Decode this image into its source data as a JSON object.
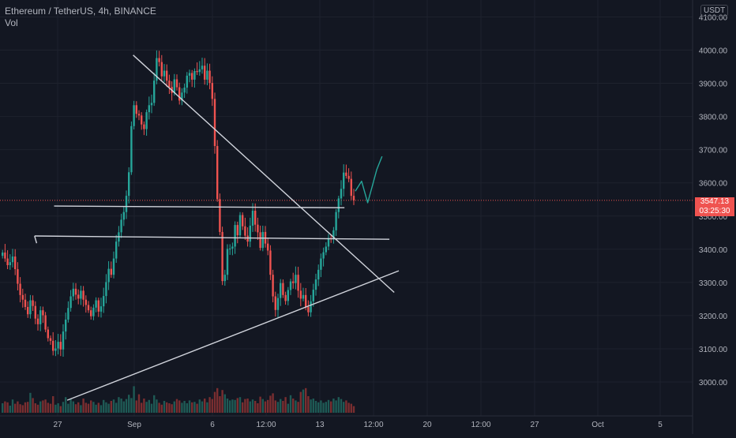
{
  "header": {
    "symbol_line": "Ethereum / TetherUS, 4h, BINANCE",
    "indicator": "Vol",
    "currency": "USDT"
  },
  "last_price": {
    "value": "3547.13",
    "countdown": "03:25:30"
  },
  "colors": {
    "background": "#131722",
    "grid": "#1e222d",
    "up": "#26a69a",
    "down": "#ef5350",
    "vol_up": "#1e5a55",
    "vol_down": "#7a2e30",
    "axis_text": "#b2b5be",
    "trendline": "#d1d4dc",
    "projection": "#26a69a"
  },
  "chart_data": {
    "type": "candlestick",
    "xlabels": [
      "27",
      "Sep",
      "6",
      "12:00",
      "13",
      "12:00",
      "20",
      "12:00",
      "27",
      "Oct",
      "5"
    ],
    "ylabels": [
      "3000.00",
      "3100.00",
      "3200.00",
      "3300.00",
      "3400.00",
      "3500.00",
      "3600.00",
      "3700.00",
      "3800.00",
      "3900.00",
      "4000.00",
      "4100.00"
    ],
    "ylim": [
      2940,
      4110
    ],
    "grid": true,
    "closes": [
      3390,
      3372,
      3352,
      3361,
      3378,
      3340,
      3296,
      3262,
      3248,
      3226,
      3204,
      3246,
      3229,
      3191,
      3174,
      3216,
      3201,
      3158,
      3132,
      3124,
      3094,
      3101,
      3121,
      3098,
      3152,
      3188,
      3223,
      3258,
      3281,
      3263,
      3251,
      3275,
      3248,
      3232,
      3216,
      3198,
      3224,
      3246,
      3212,
      3228,
      3259,
      3301,
      3341,
      3323,
      3372,
      3423,
      3451,
      3489,
      3512,
      3561,
      3632,
      3771,
      3834,
      3808,
      3803,
      3776,
      3762,
      3813,
      3834,
      3841,
      3908,
      3976,
      3964,
      3921,
      3938,
      3908,
      3889,
      3871,
      3912,
      3888,
      3848,
      3872,
      3887,
      3923,
      3931,
      3911,
      3937,
      3934,
      3942,
      3953,
      3911,
      3938,
      3901,
      3853,
      3711,
      3551,
      3452,
      3304,
      3323,
      3401,
      3402,
      3408,
      3473,
      3442,
      3503,
      3469,
      3441,
      3423,
      3471,
      3516,
      3474,
      3451,
      3404,
      3452,
      3417,
      3396,
      3323,
      3258,
      3217,
      3253,
      3298,
      3262,
      3244,
      3277,
      3303,
      3298,
      3323,
      3275,
      3251,
      3262,
      3226,
      3210,
      3243,
      3278,
      3309,
      3338,
      3372,
      3391,
      3408,
      3434,
      3432,
      3457,
      3512,
      3553,
      3582,
      3631,
      3621,
      3612,
      3561,
      3547.13
    ],
    "volume": [
      20,
      24,
      22,
      15,
      28,
      19,
      24,
      18,
      16,
      22,
      23,
      42,
      31,
      20,
      17,
      24,
      26,
      28,
      21,
      19,
      35,
      17,
      20,
      14,
      23,
      33,
      19,
      30,
      24,
      18,
      22,
      16,
      30,
      21,
      19,
      26,
      23,
      17,
      21,
      16,
      27,
      22,
      19,
      25,
      28,
      21,
      33,
      30,
      24,
      29,
      38,
      31,
      56,
      26,
      39,
      21,
      30,
      23,
      27,
      19,
      37,
      28,
      21,
      17,
      25,
      22,
      20,
      18,
      24,
      29,
      26,
      21,
      25,
      20,
      26,
      22,
      23,
      19,
      28,
      24,
      30,
      22,
      33,
      29,
      44,
      52,
      35,
      48,
      39,
      30,
      26,
      28,
      27,
      31,
      33,
      22,
      29,
      30,
      24,
      28,
      25,
      20,
      34,
      29,
      24,
      27,
      36,
      41,
      26,
      23,
      29,
      25,
      33,
      19,
      37,
      30,
      26,
      23,
      44,
      49,
      52,
      35,
      28,
      30,
      25,
      22,
      26,
      21,
      23,
      27,
      24,
      30,
      26,
      33,
      29,
      23,
      26,
      21,
      19,
      14
    ],
    "volume_max": 100,
    "drawings": [
      {
        "kind": "trendline",
        "points": [
          [
            52.2,
            3985
          ],
          [
            155.5,
            3270
          ]
        ]
      },
      {
        "kind": "trendline",
        "points": [
          [
            26.1,
            2945
          ],
          [
            157.3,
            3335
          ]
        ]
      },
      {
        "kind": "trendline",
        "points": [
          [
            20.9,
            3530
          ],
          [
            135.8,
            3525
          ]
        ]
      },
      {
        "kind": "trendline",
        "points": [
          [
            13.2,
            3440
          ],
          [
            153.6,
            3430
          ]
        ]
      },
      {
        "kind": "trendline",
        "points": [
          [
            13.2,
            3440
          ],
          [
            14.0,
            3418
          ]
        ]
      },
      {
        "kind": "projection",
        "points": [
          [
            140.1,
            3575
          ],
          [
            142.6,
            3605
          ],
          [
            145.0,
            3540
          ],
          [
            146.8,
            3590
          ],
          [
            148.6,
            3640
          ],
          [
            150.7,
            3680
          ]
        ]
      }
    ]
  }
}
